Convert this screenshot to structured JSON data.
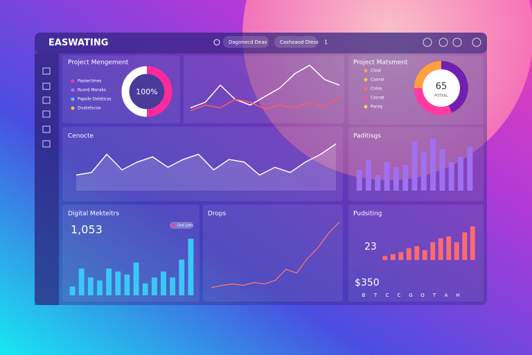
{
  "topbar": {
    "brand": "EASWATING",
    "search": "Dagonecd Deas",
    "tab": "Cashoaod Dless",
    "badge": "1"
  },
  "project": {
    "title": "Project Mengement",
    "legend": [
      "Paoiectmes",
      "Ruord Moraks",
      "Papole Delsticss",
      "Dvatelscoa"
    ],
    "center": "100%"
  },
  "trend": {
    "series": [
      [
        20,
        30,
        60,
        35,
        25,
        40,
        55,
        80,
        95,
        70,
        60
      ],
      [
        15,
        25,
        20,
        35,
        30,
        18,
        25,
        20,
        30,
        22,
        40
      ]
    ]
  },
  "status": {
    "title": "Project Matsment",
    "legend": [
      "Cloal",
      "Coorai",
      "Colos",
      "Cocrat",
      "Pacey"
    ],
    "center": "65",
    "sub": "POTKAL"
  },
  "wave": {
    "title": "Cenocte",
    "values": [
      30,
      35,
      70,
      40,
      55,
      65,
      45,
      60,
      70,
      40,
      60,
      55,
      30,
      45,
      35,
      55,
      70,
      90
    ]
  },
  "bars": {
    "title": "Paditisgs",
    "values": [
      40,
      60,
      30,
      55,
      45,
      50,
      95,
      75,
      100,
      80,
      55,
      65,
      85
    ]
  },
  "digital": {
    "title": "Digital Mekteitrs",
    "value": "1,053",
    "pill": "Dsd Lotn",
    "values": [
      15,
      45,
      30,
      25,
      45,
      40,
      35,
      55,
      20,
      30,
      40,
      30,
      60,
      95
    ]
  },
  "drops": {
    "title": "Drops",
    "values": [
      5,
      8,
      10,
      8,
      12,
      10,
      15,
      30,
      25,
      45,
      60,
      80,
      95
    ]
  },
  "posting": {
    "title": "Pudsiting",
    "value": "23",
    "total": "$350",
    "values": [
      10,
      15,
      20,
      30,
      35,
      25,
      45,
      55,
      60,
      45,
      70,
      85
    ],
    "letters": [
      "B",
      "T",
      "C",
      "C",
      "G",
      "O",
      "T",
      "A",
      "H"
    ]
  }
}
